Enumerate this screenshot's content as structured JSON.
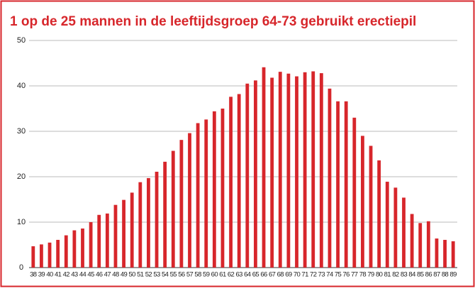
{
  "chart_data": {
    "type": "bar",
    "title": "1 op de 25 mannen in de leeftijdsgroep 64-73 gebruikt erectiepil",
    "categories": [
      "38",
      "39",
      "40",
      "41",
      "42",
      "43",
      "44",
      "45",
      "46",
      "47",
      "48",
      "49",
      "50",
      "51",
      "52",
      "53",
      "54",
      "55",
      "56",
      "57",
      "58",
      "59",
      "60",
      "61",
      "62",
      "63",
      "64",
      "65",
      "66",
      "67",
      "68",
      "69",
      "70",
      "71",
      "72",
      "73",
      "74",
      "75",
      "76",
      "77",
      "78",
      "79",
      "80",
      "81",
      "82",
      "83",
      "84",
      "85",
      "86",
      "87",
      "88",
      "89"
    ],
    "values": [
      4.7,
      5.1,
      5.5,
      6.1,
      7.1,
      8.2,
      8.6,
      10,
      11.6,
      11.9,
      13.8,
      14.9,
      16.5,
      18.8,
      19.7,
      21.1,
      23.3,
      25.7,
      28.1,
      29.6,
      31.8,
      32.6,
      34.4,
      35,
      37.6,
      38.2,
      40.5,
      41.2,
      44.1,
      41.8,
      43.1,
      42.7,
      42.1,
      43,
      43.2,
      42.8,
      39.4,
      36.6,
      36.6,
      33,
      29,
      26.8,
      23.6,
      18.9,
      17.6,
      15.4,
      11.8,
      9.8,
      10.2,
      6.4,
      6.1,
      5.8
    ],
    "color": "#d7262b",
    "ylim": [
      0,
      50
    ],
    "yticks": [
      0,
      10,
      20,
      30,
      40,
      50
    ],
    "grid": true
  }
}
